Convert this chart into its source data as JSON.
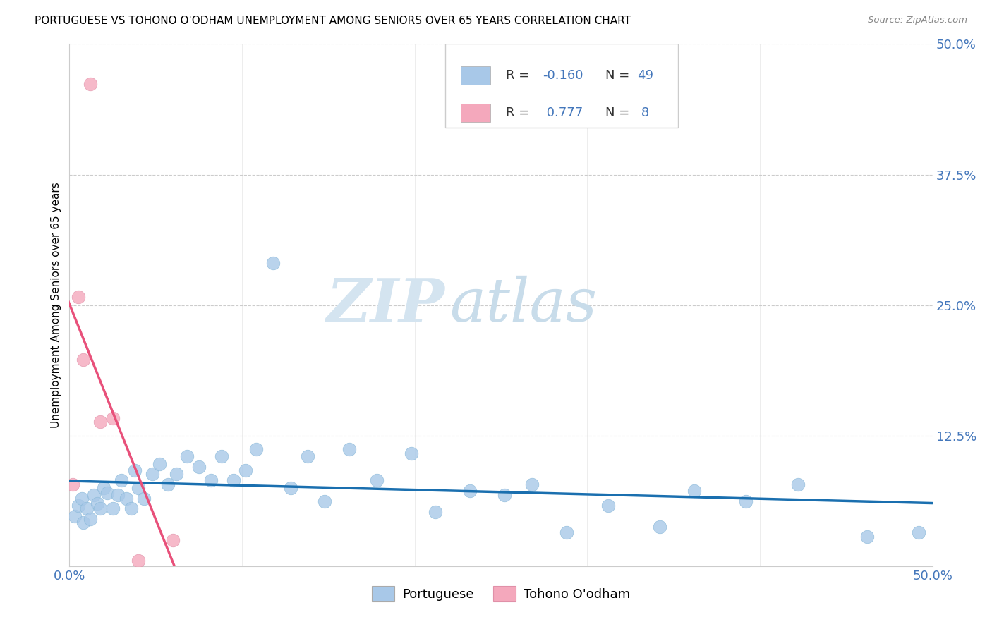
{
  "title": "PORTUGUESE VS TOHONO O'ODHAM UNEMPLOYMENT AMONG SENIORS OVER 65 YEARS CORRELATION CHART",
  "source": "Source: ZipAtlas.com",
  "ylabel": "Unemployment Among Seniors over 65 years",
  "xlim": [
    0.0,
    0.5
  ],
  "ylim": [
    0.0,
    0.5
  ],
  "xtick_positions": [
    0.0,
    0.1,
    0.2,
    0.3,
    0.4,
    0.5
  ],
  "xtick_labels": [
    "0.0%",
    "",
    "",
    "",
    "",
    "50.0%"
  ],
  "ytick_positions": [
    0.0,
    0.125,
    0.25,
    0.375,
    0.5
  ],
  "ytick_labels": [
    "",
    "12.5%",
    "25.0%",
    "37.5%",
    "50.0%"
  ],
  "blue_color": "#a8c8e8",
  "pink_color": "#f4a8bc",
  "blue_line_color": "#1a6faf",
  "pink_line_color": "#e8507a",
  "tick_color": "#4477bb",
  "grid_color": "#cccccc",
  "r_blue": "-0.160",
  "n_blue": "49",
  "r_pink": "0.777",
  "n_pink": "8",
  "label_portuguese": "Portuguese",
  "label_tohono": "Tohono O'odham",
  "portuguese_x": [
    0.003,
    0.005,
    0.007,
    0.008,
    0.01,
    0.012,
    0.014,
    0.016,
    0.018,
    0.02,
    0.022,
    0.025,
    0.028,
    0.03,
    0.033,
    0.036,
    0.038,
    0.04,
    0.043,
    0.048,
    0.052,
    0.057,
    0.062,
    0.068,
    0.075,
    0.082,
    0.088,
    0.095,
    0.102,
    0.108,
    0.118,
    0.128,
    0.138,
    0.148,
    0.162,
    0.178,
    0.198,
    0.212,
    0.232,
    0.252,
    0.268,
    0.288,
    0.312,
    0.342,
    0.362,
    0.392,
    0.422,
    0.462,
    0.492
  ],
  "portuguese_y": [
    0.048,
    0.058,
    0.065,
    0.042,
    0.055,
    0.045,
    0.068,
    0.06,
    0.055,
    0.075,
    0.07,
    0.055,
    0.068,
    0.082,
    0.065,
    0.055,
    0.092,
    0.075,
    0.065,
    0.088,
    0.098,
    0.078,
    0.088,
    0.105,
    0.095,
    0.082,
    0.105,
    0.082,
    0.092,
    0.112,
    0.29,
    0.075,
    0.105,
    0.062,
    0.112,
    0.082,
    0.108,
    0.052,
    0.072,
    0.068,
    0.078,
    0.032,
    0.058,
    0.038,
    0.072,
    0.062,
    0.078,
    0.028,
    0.032
  ],
  "tohono_x": [
    0.002,
    0.005,
    0.008,
    0.012,
    0.018,
    0.025,
    0.04,
    0.06
  ],
  "tohono_y": [
    0.078,
    0.258,
    0.198,
    0.462,
    0.138,
    0.142,
    0.005,
    0.025
  ]
}
